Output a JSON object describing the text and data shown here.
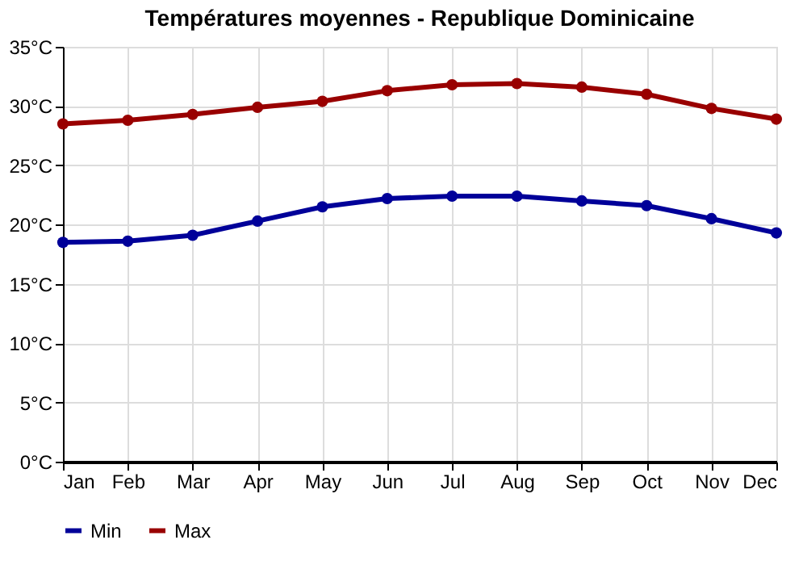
{
  "chart_data": {
    "type": "line",
    "title": "Températures moyennes - Republique Dominicaine",
    "categories": [
      "Jan",
      "Feb",
      "Mar",
      "Apr",
      "May",
      "Jun",
      "Jul",
      "Aug",
      "Sep",
      "Oct",
      "Nov",
      "Dec"
    ],
    "series": [
      {
        "name": "Min",
        "color": "#000099",
        "values": [
          18.5,
          18.6,
          19.1,
          20.3,
          21.5,
          22.2,
          22.4,
          22.4,
          22.0,
          21.6,
          20.5,
          19.3
        ]
      },
      {
        "name": "Max",
        "color": "#990000",
        "values": [
          28.5,
          28.8,
          29.3,
          29.9,
          30.4,
          31.3,
          31.8,
          31.9,
          31.6,
          31.0,
          29.8,
          28.9
        ]
      }
    ],
    "ylim": [
      0,
      35
    ],
    "yticks": [
      {
        "value": 0,
        "label": "0°C"
      },
      {
        "value": 5,
        "label": "5°C"
      },
      {
        "value": 10,
        "label": "10°C"
      },
      {
        "value": 15,
        "label": "15°C"
      },
      {
        "value": 20,
        "label": "20°C"
      },
      {
        "value": 25,
        "label": "25°C"
      },
      {
        "value": 30,
        "label": "30°C"
      },
      {
        "value": 35,
        "label": "35°C"
      }
    ],
    "grid": true,
    "legend": "bottom left",
    "marker": "circle",
    "line_style": "solid"
  }
}
